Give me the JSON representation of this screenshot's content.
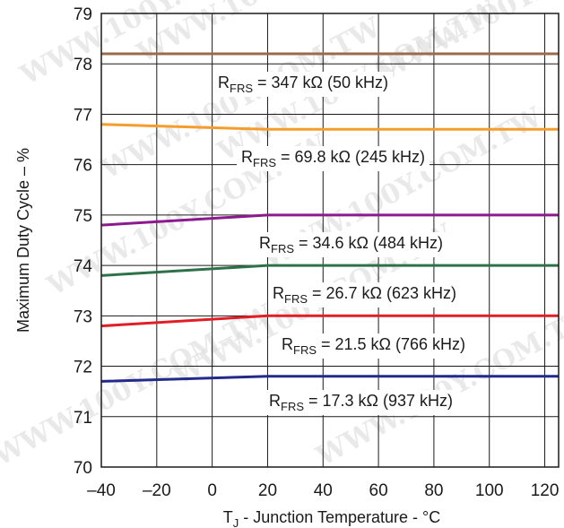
{
  "chart_data": {
    "type": "line",
    "xlabel": {
      "main": "T",
      "sub": "J",
      "rest": " - Junction Temperature - °C"
    },
    "ylabel": "Maximum Duty Cycle – %",
    "xlim": [
      -40,
      125
    ],
    "ylim": [
      70,
      79
    ],
    "xticks": [
      "–40",
      "–20",
      "0",
      "20",
      "40",
      "60",
      "80",
      "100",
      "120"
    ],
    "xtick_values": [
      -40,
      -20,
      0,
      20,
      40,
      60,
      80,
      100,
      120
    ],
    "yticks": [
      "70",
      "71",
      "72",
      "73",
      "74",
      "75",
      "76",
      "77",
      "78",
      "79"
    ],
    "grid": true,
    "x": [
      -40,
      20,
      125
    ],
    "series": [
      {
        "name_main": "R",
        "name_sub": "FRS",
        "name_rest": " = 347 kΩ (50 kHz)",
        "color": "#9a6b4b",
        "values": [
          78.2,
          78.2,
          78.2
        ]
      },
      {
        "name_main": "R",
        "name_sub": "FRS",
        "name_rest": " = 69.8 kΩ (245 kHz)",
        "color": "#f59d2a",
        "values": [
          76.8,
          76.7,
          76.7
        ]
      },
      {
        "name_main": "R",
        "name_sub": "FRS",
        "name_rest": " = 34.6 kΩ (484 kHz)",
        "color": "#8b1a8e",
        "values": [
          74.8,
          75.0,
          75.0
        ]
      },
      {
        "name_main": "R",
        "name_sub": "FRS",
        "name_rest": " = 26.7 kΩ (623 kHz)",
        "color": "#2e7048",
        "values": [
          73.8,
          74.0,
          74.0
        ]
      },
      {
        "name_main": "R",
        "name_sub": "FRS",
        "name_rest": " = 21.5 kΩ (766 kHz)",
        "color": "#e01e26",
        "values": [
          72.8,
          73.0,
          73.0
        ]
      },
      {
        "name_main": "R",
        "name_sub": "FRS",
        "name_rest": " = 17.3 kΩ (937 kHz)",
        "color": "#232a8c",
        "values": [
          71.7,
          71.8,
          71.8
        ]
      }
    ],
    "watermark": "WWW.100Y.COM.TW"
  }
}
